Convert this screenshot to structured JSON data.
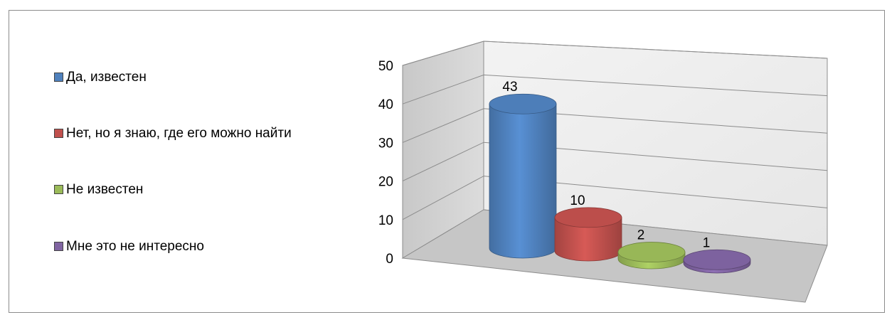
{
  "chart_data": {
    "type": "bar",
    "style": "3d-cylinder",
    "categories": [
      "Да, известен",
      "Нет, но я знаю, где его можно найти",
      "Не известен",
      "Мне это не интересно"
    ],
    "values": [
      43,
      10,
      2,
      1
    ],
    "colors": [
      "#4f81bd",
      "#c0504d",
      "#9bbb59",
      "#8064a2"
    ],
    "ylim": [
      0,
      50
    ],
    "yticks": [
      "0",
      "10",
      "20",
      "30",
      "40",
      "50"
    ],
    "data_labels": [
      "43",
      "10",
      "2",
      "1"
    ],
    "legend_position": "left",
    "grid": true
  }
}
